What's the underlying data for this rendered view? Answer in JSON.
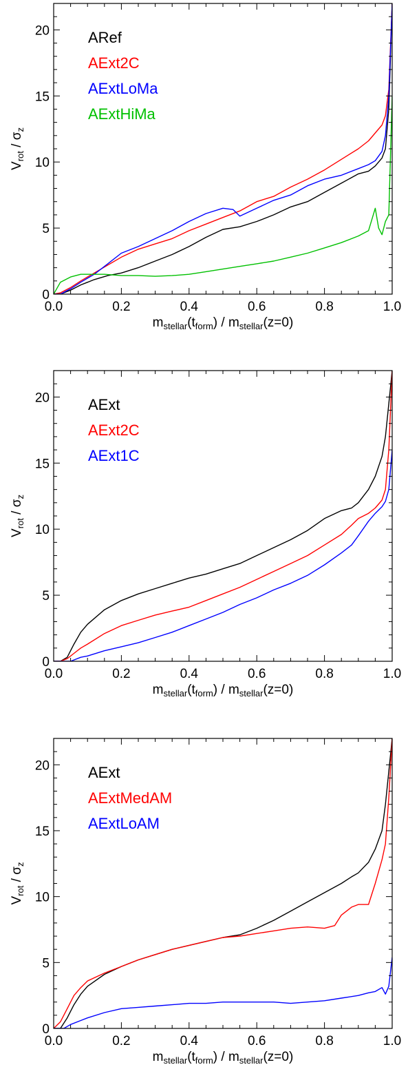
{
  "chart_data": [
    {
      "type": "line",
      "title": "",
      "xlabel": {
        "base": "m",
        "sub": "stellar",
        "mid": "(t",
        "sub2": "form",
        "mid2": ") / m",
        "sub3": "stellar",
        "end": "(z=0)"
      },
      "ylabel": {
        "base": "V",
        "sub": "rot",
        "mid": " / σ",
        "sub2": "z"
      },
      "xlim": [
        0.0,
        1.0
      ],
      "ylim": [
        0,
        22
      ],
      "xticks": [
        0.0,
        0.2,
        0.4,
        0.6,
        0.8,
        1.0
      ],
      "xtick_labels": [
        "0.0",
        "0.2",
        "0.4",
        "0.6",
        "0.8",
        "1.0"
      ],
      "yticks": [
        0,
        5,
        10,
        15,
        20
      ],
      "ytick_labels": [
        "0",
        "5",
        "10",
        "15",
        "20"
      ],
      "legend_location": "top-left",
      "series": [
        {
          "name": "ARef",
          "color": "#000000",
          "x": [
            0.0,
            0.02,
            0.05,
            0.08,
            0.12,
            0.16,
            0.2,
            0.25,
            0.3,
            0.35,
            0.4,
            0.45,
            0.5,
            0.55,
            0.6,
            0.65,
            0.7,
            0.75,
            0.8,
            0.85,
            0.9,
            0.93,
            0.95,
            0.97,
            0.98,
            0.99,
            1.0
          ],
          "y": [
            0.0,
            0.0,
            0.3,
            0.7,
            1.1,
            1.4,
            1.6,
            2.0,
            2.5,
            3.0,
            3.6,
            4.3,
            4.9,
            5.1,
            5.5,
            6.0,
            6.6,
            7.0,
            7.7,
            8.4,
            9.1,
            9.3,
            9.7,
            10.3,
            11.0,
            14.0,
            22.0
          ]
        },
        {
          "name": "AExt2C",
          "color": "#ff0000",
          "x": [
            0.0,
            0.02,
            0.05,
            0.08,
            0.12,
            0.16,
            0.2,
            0.25,
            0.3,
            0.35,
            0.4,
            0.45,
            0.5,
            0.55,
            0.6,
            0.65,
            0.7,
            0.75,
            0.8,
            0.85,
            0.9,
            0.93,
            0.95,
            0.97,
            0.98,
            0.99,
            1.0
          ],
          "y": [
            0.0,
            0.1,
            0.5,
            1.0,
            1.6,
            2.2,
            2.8,
            3.4,
            3.8,
            4.2,
            4.8,
            5.3,
            5.8,
            6.3,
            7.0,
            7.4,
            8.1,
            8.7,
            9.4,
            10.2,
            11.0,
            11.6,
            12.2,
            12.8,
            13.5,
            15.5,
            22.0
          ]
        },
        {
          "name": "AExtLoMa",
          "color": "#0000ff",
          "x": [
            0.0,
            0.02,
            0.05,
            0.08,
            0.12,
            0.16,
            0.2,
            0.25,
            0.3,
            0.35,
            0.4,
            0.45,
            0.5,
            0.53,
            0.55,
            0.6,
            0.65,
            0.7,
            0.75,
            0.8,
            0.85,
            0.9,
            0.93,
            0.95,
            0.97,
            0.98,
            0.99,
            1.0
          ],
          "y": [
            0.0,
            0.0,
            0.4,
            0.9,
            1.5,
            2.3,
            3.1,
            3.6,
            4.2,
            4.8,
            5.5,
            6.1,
            6.5,
            6.4,
            5.9,
            6.5,
            7.1,
            7.5,
            8.2,
            8.7,
            9.0,
            9.5,
            9.8,
            10.1,
            10.8,
            12.0,
            15.0,
            22.0
          ]
        },
        {
          "name": "AExtHiMa",
          "color": "#00c000",
          "x": [
            0.0,
            0.02,
            0.05,
            0.08,
            0.1,
            0.15,
            0.2,
            0.25,
            0.3,
            0.35,
            0.4,
            0.45,
            0.5,
            0.55,
            0.6,
            0.65,
            0.7,
            0.75,
            0.8,
            0.85,
            0.9,
            0.93,
            0.95,
            0.96,
            0.97,
            0.98,
            0.99,
            1.0
          ],
          "y": [
            0.0,
            0.9,
            1.3,
            1.5,
            1.5,
            1.5,
            1.4,
            1.4,
            1.35,
            1.4,
            1.5,
            1.7,
            1.9,
            2.1,
            2.3,
            2.5,
            2.8,
            3.1,
            3.5,
            3.9,
            4.4,
            4.8,
            6.5,
            5.0,
            4.5,
            5.5,
            6.0,
            15.0
          ]
        }
      ]
    },
    {
      "type": "line",
      "title": "",
      "xlabel": {
        "base": "m",
        "sub": "stellar",
        "mid": "(t",
        "sub2": "form",
        "mid2": ") / m",
        "sub3": "stellar",
        "end": "(z=0)"
      },
      "ylabel": {
        "base": "V",
        "sub": "rot",
        "mid": " / σ",
        "sub2": "z"
      },
      "xlim": [
        0.0,
        1.0
      ],
      "ylim": [
        0,
        22
      ],
      "xticks": [
        0.0,
        0.2,
        0.4,
        0.6,
        0.8,
        1.0
      ],
      "xtick_labels": [
        "0.0",
        "0.2",
        "0.4",
        "0.6",
        "0.8",
        "1.0"
      ],
      "yticks": [
        0,
        5,
        10,
        15,
        20
      ],
      "ytick_labels": [
        "0",
        "5",
        "10",
        "15",
        "20"
      ],
      "legend_location": "top-left",
      "series": [
        {
          "name": "AExt",
          "color": "#000000",
          "x": [
            0.0,
            0.02,
            0.04,
            0.06,
            0.08,
            0.1,
            0.15,
            0.2,
            0.25,
            0.3,
            0.35,
            0.4,
            0.45,
            0.5,
            0.55,
            0.6,
            0.65,
            0.7,
            0.75,
            0.8,
            0.85,
            0.88,
            0.9,
            0.93,
            0.95,
            0.97,
            0.98,
            0.99,
            1.0
          ],
          "y": [
            0.0,
            0.0,
            0.3,
            1.3,
            2.2,
            2.8,
            3.9,
            4.6,
            5.1,
            5.5,
            5.9,
            6.3,
            6.6,
            7.0,
            7.4,
            8.0,
            8.6,
            9.2,
            9.9,
            10.8,
            11.4,
            11.6,
            12.0,
            13.0,
            14.0,
            15.5,
            17.0,
            19.5,
            22.0
          ]
        },
        {
          "name": "AExt2C",
          "color": "#ff0000",
          "x": [
            0.0,
            0.02,
            0.04,
            0.06,
            0.08,
            0.1,
            0.15,
            0.2,
            0.25,
            0.3,
            0.35,
            0.4,
            0.45,
            0.5,
            0.55,
            0.6,
            0.65,
            0.7,
            0.75,
            0.8,
            0.85,
            0.88,
            0.9,
            0.93,
            0.95,
            0.97,
            0.98,
            0.99,
            1.0
          ],
          "y": [
            0.0,
            0.0,
            0.2,
            0.6,
            1.0,
            1.3,
            2.1,
            2.7,
            3.1,
            3.5,
            3.8,
            4.1,
            4.6,
            5.1,
            5.6,
            6.2,
            6.8,
            7.4,
            8.0,
            8.8,
            9.6,
            10.3,
            10.8,
            11.2,
            11.6,
            12.2,
            13.0,
            16.0,
            22.0
          ]
        },
        {
          "name": "AExt1C",
          "color": "#0000ff",
          "x": [
            0.0,
            0.05,
            0.08,
            0.1,
            0.15,
            0.2,
            0.25,
            0.3,
            0.35,
            0.4,
            0.45,
            0.5,
            0.55,
            0.6,
            0.65,
            0.7,
            0.75,
            0.8,
            0.85,
            0.88,
            0.9,
            0.93,
            0.95,
            0.97,
            0.98,
            0.99,
            1.0
          ],
          "y": [
            0.0,
            0.0,
            0.3,
            0.4,
            0.8,
            1.1,
            1.4,
            1.8,
            2.2,
            2.7,
            3.2,
            3.7,
            4.3,
            4.8,
            5.4,
            5.9,
            6.5,
            7.3,
            8.2,
            8.8,
            9.5,
            10.6,
            11.2,
            11.7,
            12.1,
            13.0,
            16.0
          ]
        }
      ]
    },
    {
      "type": "line",
      "title": "",
      "xlabel": {
        "base": "m",
        "sub": "stellar",
        "mid": "(t",
        "sub2": "form",
        "mid2": ") / m",
        "sub3": "stellar",
        "end": "(z=0)"
      },
      "ylabel": {
        "base": "V",
        "sub": "rot",
        "mid": " / σ",
        "sub2": "z"
      },
      "xlim": [
        0.0,
        1.0
      ],
      "ylim": [
        0,
        22
      ],
      "xticks": [
        0.0,
        0.2,
        0.4,
        0.6,
        0.8,
        1.0
      ],
      "xtick_labels": [
        "0.0",
        "0.2",
        "0.4",
        "0.6",
        "0.8",
        "1.0"
      ],
      "yticks": [
        0,
        5,
        10,
        15,
        20
      ],
      "ytick_labels": [
        "0",
        "5",
        "10",
        "15",
        "20"
      ],
      "legend_location": "top-left",
      "series": [
        {
          "name": "AExt",
          "color": "#000000",
          "x": [
            0.0,
            0.02,
            0.04,
            0.06,
            0.08,
            0.1,
            0.15,
            0.2,
            0.25,
            0.3,
            0.35,
            0.4,
            0.45,
            0.5,
            0.55,
            0.6,
            0.65,
            0.7,
            0.75,
            0.8,
            0.85,
            0.88,
            0.9,
            0.93,
            0.95,
            0.97,
            0.98,
            0.99,
            1.0
          ],
          "y": [
            0.0,
            0.0,
            0.8,
            1.8,
            2.6,
            3.2,
            4.1,
            4.7,
            5.2,
            5.6,
            6.0,
            6.3,
            6.6,
            6.9,
            7.1,
            7.6,
            8.2,
            8.9,
            9.6,
            10.3,
            11.0,
            11.5,
            11.8,
            12.6,
            13.6,
            15.0,
            17.0,
            19.5,
            22.0
          ]
        },
        {
          "name": "AExtMedAM",
          "color": "#ff0000",
          "x": [
            0.0,
            0.02,
            0.04,
            0.06,
            0.08,
            0.1,
            0.15,
            0.2,
            0.25,
            0.3,
            0.35,
            0.4,
            0.45,
            0.5,
            0.55,
            0.6,
            0.65,
            0.7,
            0.75,
            0.8,
            0.83,
            0.85,
            0.88,
            0.9,
            0.93,
            0.95,
            0.97,
            0.98,
            0.99,
            1.0
          ],
          "y": [
            0.0,
            0.5,
            1.5,
            2.5,
            3.1,
            3.6,
            4.2,
            4.7,
            5.2,
            5.6,
            6.0,
            6.3,
            6.6,
            6.9,
            7.0,
            7.2,
            7.4,
            7.6,
            7.7,
            7.6,
            7.8,
            8.6,
            9.2,
            9.4,
            9.4,
            11.0,
            12.8,
            14.0,
            17.5,
            22.0
          ]
        },
        {
          "name": "AExtLoAM",
          "color": "#0000ff",
          "x": [
            0.0,
            0.03,
            0.05,
            0.08,
            0.1,
            0.15,
            0.2,
            0.25,
            0.3,
            0.35,
            0.4,
            0.45,
            0.5,
            0.55,
            0.6,
            0.65,
            0.7,
            0.75,
            0.8,
            0.85,
            0.9,
            0.93,
            0.95,
            0.97,
            0.98,
            0.99,
            1.0
          ],
          "y": [
            0.0,
            0.0,
            0.3,
            0.6,
            0.8,
            1.2,
            1.5,
            1.6,
            1.7,
            1.8,
            1.9,
            1.9,
            2.0,
            2.0,
            2.0,
            2.0,
            1.9,
            2.0,
            2.1,
            2.3,
            2.5,
            2.7,
            2.8,
            3.1,
            2.6,
            3.2,
            5.4
          ]
        }
      ]
    }
  ]
}
